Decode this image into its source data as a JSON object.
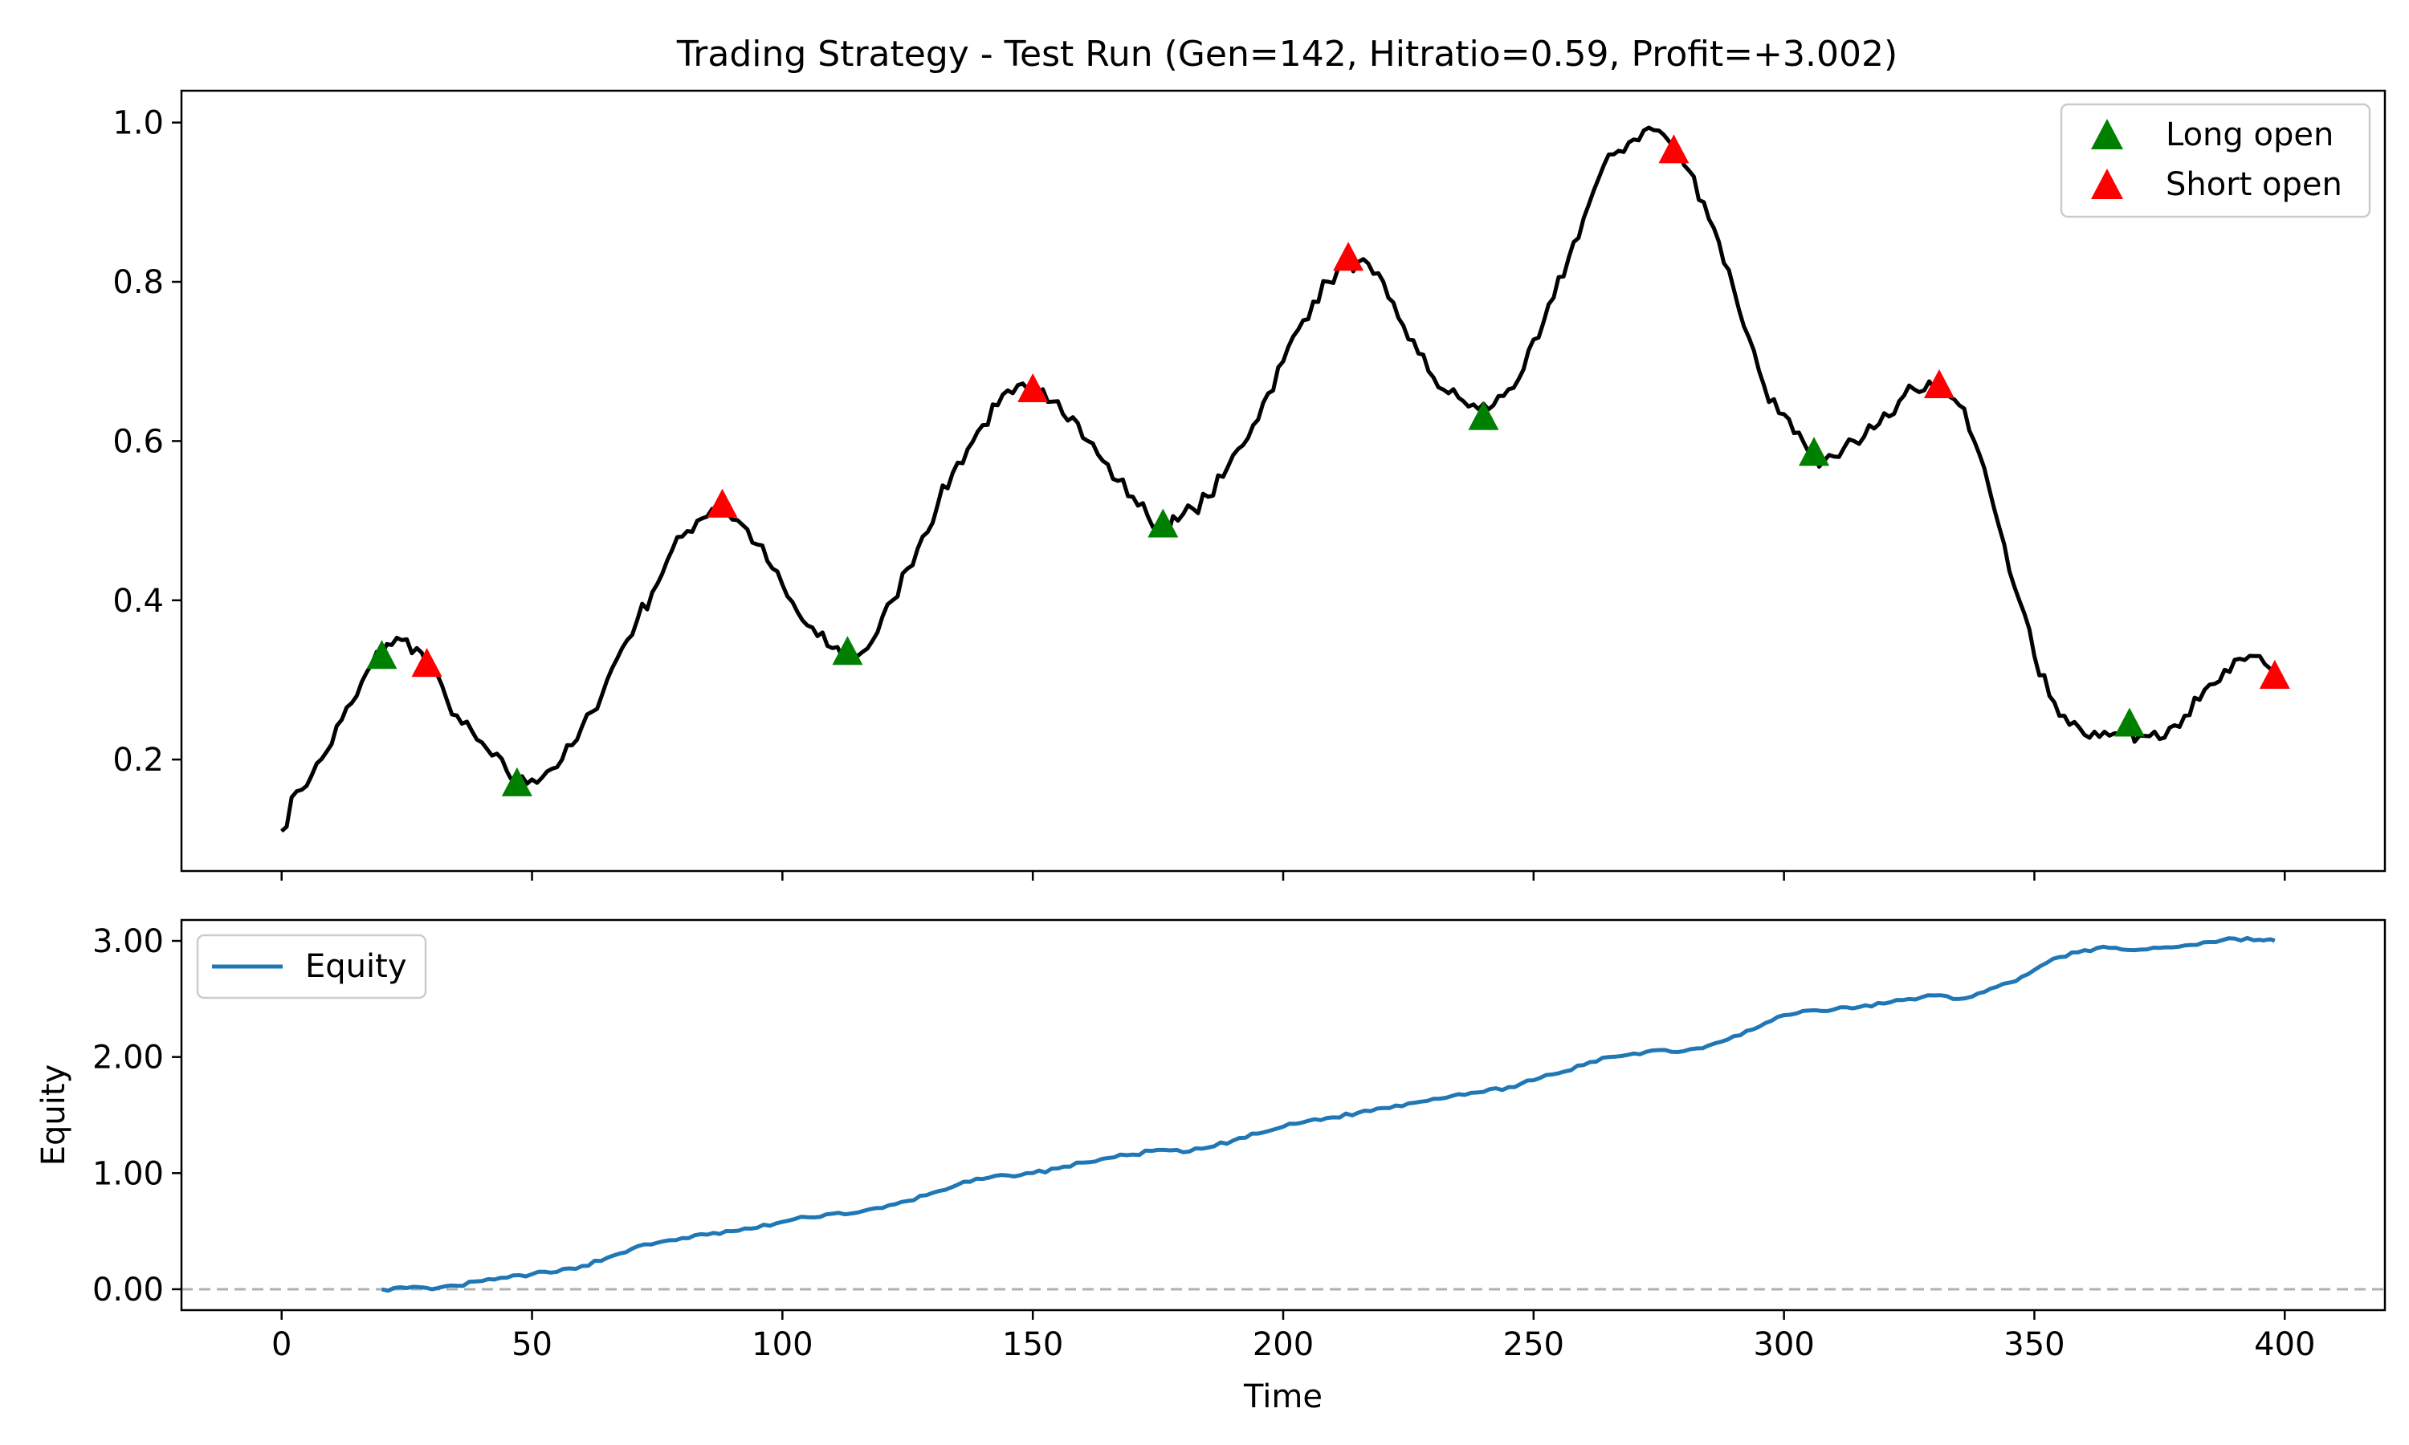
{
  "chart_data": [
    {
      "type": "line",
      "title": "Trading Strategy - Test Run (Gen=142, Hitratio=0.59, Profit=+3.002)",
      "xlabel": "",
      "ylabel": "",
      "xlim": [
        -20,
        420
      ],
      "ylim": [
        0.06,
        1.04
      ],
      "xticks": [
        0,
        50,
        100,
        150,
        200,
        250,
        300,
        350,
        400
      ],
      "yticks": [
        0.2,
        0.4,
        0.6,
        0.8,
        1.0
      ],
      "ytick_labels": [
        "0.2",
        "0.4",
        "0.6",
        "0.8",
        "1.0"
      ],
      "legend_position": "top-right",
      "price_color": "#000000",
      "price_knots": [
        [
          0,
          0.11
        ],
        [
          3,
          0.16
        ],
        [
          6,
          0.18
        ],
        [
          9,
          0.21
        ],
        [
          12,
          0.25
        ],
        [
          15,
          0.28
        ],
        [
          18,
          0.32
        ],
        [
          21,
          0.345
        ],
        [
          24,
          0.35
        ],
        [
          27,
          0.34
        ],
        [
          30,
          0.31
        ],
        [
          33,
          0.275
        ],
        [
          36,
          0.245
        ],
        [
          39,
          0.225
        ],
        [
          42,
          0.205
        ],
        [
          45,
          0.185
        ],
        [
          47,
          0.17
        ],
        [
          50,
          0.175
        ],
        [
          53,
          0.185
        ],
        [
          56,
          0.2
        ],
        [
          59,
          0.225
        ],
        [
          62,
          0.26
        ],
        [
          65,
          0.3
        ],
        [
          68,
          0.34
        ],
        [
          71,
          0.375
        ],
        [
          74,
          0.41
        ],
        [
          77,
          0.45
        ],
        [
          80,
          0.48
        ],
        [
          83,
          0.5
        ],
        [
          86,
          0.515
        ],
        [
          89,
          0.51
        ],
        [
          92,
          0.495
        ],
        [
          95,
          0.47
        ],
        [
          98,
          0.44
        ],
        [
          101,
          0.405
        ],
        [
          104,
          0.375
        ],
        [
          107,
          0.355
        ],
        [
          110,
          0.34
        ],
        [
          113,
          0.33
        ],
        [
          116,
          0.335
        ],
        [
          119,
          0.36
        ],
        [
          122,
          0.4
        ],
        [
          125,
          0.44
        ],
        [
          128,
          0.48
        ],
        [
          131,
          0.52
        ],
        [
          134,
          0.56
        ],
        [
          137,
          0.59
        ],
        [
          140,
          0.62
        ],
        [
          143,
          0.645
        ],
        [
          146,
          0.66
        ],
        [
          149,
          0.665
        ],
        [
          152,
          0.665
        ],
        [
          155,
          0.65
        ],
        [
          158,
          0.63
        ],
        [
          161,
          0.6
        ],
        [
          164,
          0.575
        ],
        [
          167,
          0.55
        ],
        [
          170,
          0.53
        ],
        [
          173,
          0.505
        ],
        [
          176,
          0.49
        ],
        [
          179,
          0.5
        ],
        [
          182,
          0.515
        ],
        [
          185,
          0.53
        ],
        [
          188,
          0.555
        ],
        [
          191,
          0.59
        ],
        [
          194,
          0.62
        ],
        [
          197,
          0.66
        ],
        [
          200,
          0.7
        ],
        [
          203,
          0.74
        ],
        [
          206,
          0.775
        ],
        [
          209,
          0.8
        ],
        [
          212,
          0.82
        ],
        [
          215,
          0.825
        ],
        [
          218,
          0.81
        ],
        [
          221,
          0.78
        ],
        [
          224,
          0.745
        ],
        [
          227,
          0.71
        ],
        [
          230,
          0.68
        ],
        [
          233,
          0.66
        ],
        [
          236,
          0.65
        ],
        [
          239,
          0.64
        ],
        [
          242,
          0.645
        ],
        [
          245,
          0.665
        ],
        [
          248,
          0.69
        ],
        [
          251,
          0.73
        ],
        [
          254,
          0.78
        ],
        [
          257,
          0.83
        ],
        [
          260,
          0.88
        ],
        [
          263,
          0.93
        ],
        [
          266,
          0.96
        ],
        [
          269,
          0.975
        ],
        [
          272,
          0.99
        ],
        [
          275,
          0.99
        ],
        [
          278,
          0.97
        ],
        [
          281,
          0.94
        ],
        [
          284,
          0.9
        ],
        [
          287,
          0.85
        ],
        [
          290,
          0.79
        ],
        [
          293,
          0.73
        ],
        [
          296,
          0.67
        ],
        [
          299,
          0.635
        ],
        [
          302,
          0.61
        ],
        [
          305,
          0.585
        ],
        [
          308,
          0.575
        ],
        [
          311,
          0.58
        ],
        [
          314,
          0.6
        ],
        [
          317,
          0.62
        ],
        [
          320,
          0.635
        ],
        [
          323,
          0.65
        ],
        [
          326,
          0.665
        ],
        [
          329,
          0.675
        ],
        [
          332,
          0.67
        ],
        [
          335,
          0.645
        ],
        [
          338,
          0.6
        ],
        [
          341,
          0.54
        ],
        [
          344,
          0.47
        ],
        [
          347,
          0.4
        ],
        [
          350,
          0.33
        ],
        [
          353,
          0.28
        ],
        [
          356,
          0.255
        ],
        [
          359,
          0.24
        ],
        [
          362,
          0.235
        ],
        [
          365,
          0.23
        ],
        [
          368,
          0.235
        ],
        [
          371,
          0.23
        ],
        [
          374,
          0.235
        ],
        [
          377,
          0.24
        ],
        [
          380,
          0.255
        ],
        [
          383,
          0.275
        ],
        [
          386,
          0.295
        ],
        [
          389,
          0.31
        ],
        [
          392,
          0.325
        ],
        [
          395,
          0.33
        ],
        [
          398,
          0.31
        ]
      ],
      "series": [
        {
          "name": "Long open",
          "color": "#008000",
          "marker": "triangle-up",
          "points": [
            [
              20,
              0.33
            ],
            [
              47,
              0.17
            ],
            [
              113,
              0.335
            ],
            [
              176,
              0.495
            ],
            [
              240,
              0.63
            ],
            [
              306,
              0.585
            ],
            [
              369,
              0.245
            ]
          ]
        },
        {
          "name": "Short open",
          "color": "#ff0000",
          "marker": "triangle-up",
          "points": [
            [
              29,
              0.32
            ],
            [
              88,
              0.52
            ],
            [
              150,
              0.665
            ],
            [
              213,
              0.83
            ],
            [
              278,
              0.965
            ],
            [
              331,
              0.67
            ],
            [
              398,
              0.305
            ]
          ]
        }
      ]
    },
    {
      "type": "line",
      "title": "",
      "xlabel": "Time",
      "ylabel": "Equity",
      "xlim": [
        -20,
        420
      ],
      "ylim": [
        -0.18,
        3.18
      ],
      "xticks": [
        0,
        50,
        100,
        150,
        200,
        250,
        300,
        350,
        400
      ],
      "xtick_labels": [
        "0",
        "50",
        "100",
        "150",
        "200",
        "250",
        "300",
        "350",
        "400"
      ],
      "yticks": [
        0,
        1,
        2,
        3
      ],
      "ytick_labels": [
        "0.00",
        "1.00",
        "2.00",
        "3.00"
      ],
      "reference_line": {
        "y": 0,
        "style": "dashed",
        "color": "#b0b0b0"
      },
      "legend_position": "top-left",
      "series": [
        {
          "name": "Equity",
          "color": "#1f77b4",
          "points": [
            [
              20,
              0.0
            ],
            [
              25,
              0.01
            ],
            [
              30,
              0.0
            ],
            [
              35,
              0.03
            ],
            [
              40,
              0.07
            ],
            [
              45,
              0.1
            ],
            [
              50,
              0.13
            ],
            [
              55,
              0.15
            ],
            [
              60,
              0.2
            ],
            [
              65,
              0.27
            ],
            [
              70,
              0.35
            ],
            [
              75,
              0.4
            ],
            [
              80,
              0.44
            ],
            [
              85,
              0.47
            ],
            [
              90,
              0.5
            ],
            [
              95,
              0.53
            ],
            [
              100,
              0.58
            ],
            [
              105,
              0.62
            ],
            [
              110,
              0.65
            ],
            [
              115,
              0.66
            ],
            [
              120,
              0.7
            ],
            [
              125,
              0.76
            ],
            [
              130,
              0.83
            ],
            [
              135,
              0.9
            ],
            [
              140,
              0.95
            ],
            [
              145,
              0.98
            ],
            [
              150,
              1.0
            ],
            [
              155,
              1.04
            ],
            [
              160,
              1.09
            ],
            [
              165,
              1.13
            ],
            [
              170,
              1.16
            ],
            [
              175,
              1.2
            ],
            [
              180,
              1.18
            ],
            [
              185,
              1.22
            ],
            [
              190,
              1.28
            ],
            [
              195,
              1.34
            ],
            [
              200,
              1.4
            ],
            [
              205,
              1.45
            ],
            [
              210,
              1.48
            ],
            [
              215,
              1.52
            ],
            [
              220,
              1.56
            ],
            [
              225,
              1.6
            ],
            [
              230,
              1.64
            ],
            [
              235,
              1.68
            ],
            [
              240,
              1.7
            ],
            [
              245,
              1.74
            ],
            [
              250,
              1.8
            ],
            [
              255,
              1.86
            ],
            [
              260,
              1.93
            ],
            [
              265,
              2.0
            ],
            [
              270,
              2.03
            ],
            [
              275,
              2.06
            ],
            [
              280,
              2.05
            ],
            [
              285,
              2.1
            ],
            [
              290,
              2.18
            ],
            [
              295,
              2.26
            ],
            [
              300,
              2.36
            ],
            [
              305,
              2.4
            ],
            [
              310,
              2.41
            ],
            [
              315,
              2.43
            ],
            [
              320,
              2.46
            ],
            [
              325,
              2.5
            ],
            [
              330,
              2.53
            ],
            [
              335,
              2.5
            ],
            [
              340,
              2.56
            ],
            [
              345,
              2.64
            ],
            [
              350,
              2.75
            ],
            [
              355,
              2.86
            ],
            [
              360,
              2.92
            ],
            [
              365,
              2.94
            ],
            [
              370,
              2.92
            ],
            [
              375,
              2.94
            ],
            [
              380,
              2.96
            ],
            [
              385,
              2.99
            ],
            [
              390,
              3.02
            ],
            [
              395,
              3.01
            ],
            [
              398,
              3.0
            ]
          ]
        }
      ]
    }
  ]
}
